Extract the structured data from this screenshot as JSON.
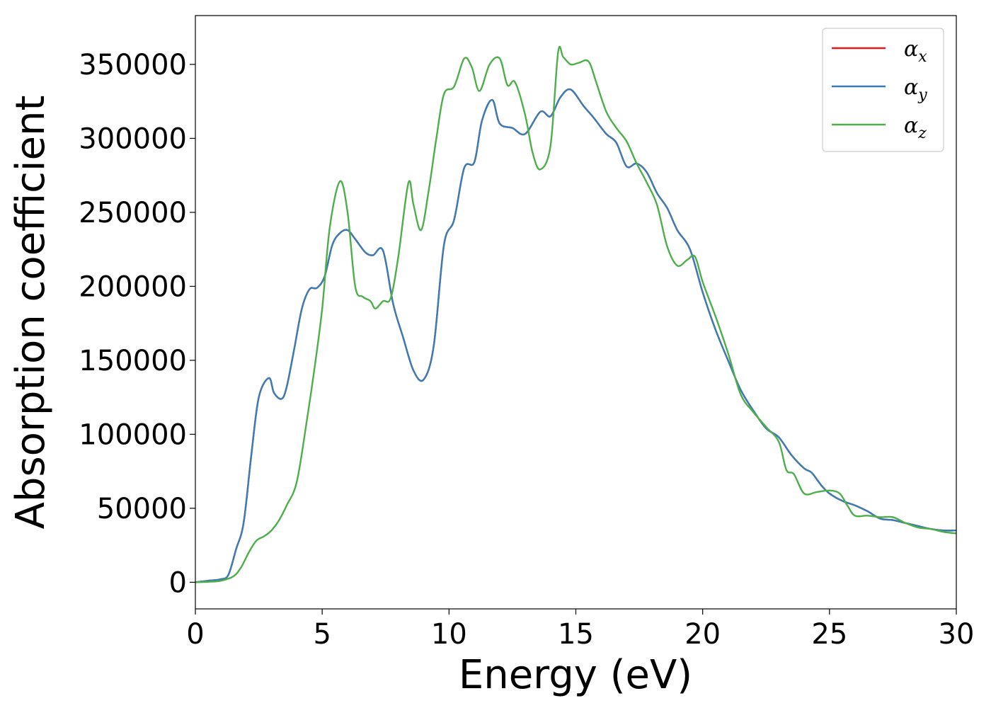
{
  "chart_data": {
    "type": "line",
    "title": "",
    "xlabel": "Energy (eV)",
    "ylabel": "Absorption coefficient",
    "xlim": [
      0,
      30
    ],
    "ylim": [
      -18000,
      383000
    ],
    "xticks": [
      "0",
      "5",
      "10",
      "15",
      "20",
      "25",
      "30"
    ],
    "yticks": [
      "0",
      "50000",
      "100000",
      "150000",
      "200000",
      "250000",
      "300000",
      "350000"
    ],
    "grid": false,
    "legend_position": "top-right",
    "series": [
      {
        "name": "α_x",
        "legend_base": "α",
        "legend_sub": "x",
        "color": "#e41a1c",
        "x": [
          0,
          0.5,
          1.0,
          1.3,
          1.6,
          1.9,
          2.2,
          2.5,
          2.9,
          3.1,
          3.4,
          3.6,
          3.9,
          4.2,
          4.5,
          4.8,
          5.1,
          5.4,
          5.7,
          6.0,
          6.3,
          6.7,
          7.0,
          7.4,
          7.8,
          8.2,
          8.6,
          9.0,
          9.4,
          9.8,
          10.2,
          10.6,
          11.0,
          11.3,
          11.7,
          12.0,
          12.5,
          13.0,
          13.6,
          14.0,
          14.4,
          14.8,
          15.3,
          15.7,
          16.2,
          16.6,
          17.0,
          17.4,
          17.8,
          18.2,
          18.6,
          19.0,
          19.5,
          20.0,
          20.5,
          21.0,
          21.5,
          22.0,
          22.5,
          23.0,
          23.5,
          24.0,
          24.3,
          24.7,
          25.0,
          25.5,
          26.0,
          26.5,
          27.0,
          27.5,
          28.0,
          28.5,
          29.0,
          29.5,
          30.0
        ],
        "y": [
          0,
          1000,
          2000,
          5000,
          22000,
          40000,
          85000,
          125000,
          138000,
          128000,
          124000,
          132000,
          158000,
          185000,
          198000,
          199000,
          207000,
          228000,
          236000,
          238000,
          232000,
          223000,
          221000,
          224000,
          188000,
          165000,
          143000,
          137000,
          160000,
          228000,
          245000,
          280000,
          284000,
          312000,
          326000,
          310000,
          307000,
          303000,
          318000,
          315000,
          328000,
          333000,
          322000,
          314000,
          303000,
          297000,
          281000,
          283000,
          277000,
          263000,
          253000,
          238000,
          225000,
          196000,
          171000,
          150000,
          130000,
          116000,
          104000,
          98000,
          86000,
          77000,
          74000,
          65000,
          60000,
          55000,
          52000,
          48000,
          43000,
          42000,
          40000,
          38000,
          36000,
          35000,
          35000
        ]
      },
      {
        "name": "α_y",
        "legend_base": "α",
        "legend_sub": "y",
        "color": "#377eb8",
        "x": [
          0,
          0.5,
          1.0,
          1.3,
          1.6,
          1.9,
          2.2,
          2.5,
          2.9,
          3.1,
          3.4,
          3.6,
          3.9,
          4.2,
          4.5,
          4.8,
          5.1,
          5.4,
          5.7,
          6.0,
          6.3,
          6.7,
          7.0,
          7.4,
          7.8,
          8.2,
          8.6,
          9.0,
          9.4,
          9.8,
          10.2,
          10.6,
          11.0,
          11.3,
          11.7,
          12.0,
          12.5,
          13.0,
          13.6,
          14.0,
          14.4,
          14.8,
          15.3,
          15.7,
          16.2,
          16.6,
          17.0,
          17.4,
          17.8,
          18.2,
          18.6,
          19.0,
          19.5,
          20.0,
          20.5,
          21.0,
          21.5,
          22.0,
          22.5,
          23.0,
          23.5,
          24.0,
          24.3,
          24.7,
          25.0,
          25.5,
          26.0,
          26.5,
          27.0,
          27.5,
          28.0,
          28.5,
          29.0,
          29.5,
          30.0
        ],
        "y": [
          0,
          1000,
          2000,
          5000,
          22000,
          40000,
          85000,
          125000,
          138000,
          128000,
          124000,
          132000,
          158000,
          185000,
          198000,
          199000,
          207000,
          228000,
          236000,
          238000,
          232000,
          223000,
          221000,
          224000,
          188000,
          165000,
          143000,
          137000,
          160000,
          228000,
          245000,
          280000,
          284000,
          312000,
          326000,
          310000,
          307000,
          303000,
          318000,
          315000,
          328000,
          333000,
          322000,
          314000,
          303000,
          297000,
          281000,
          283000,
          277000,
          263000,
          253000,
          238000,
          225000,
          196000,
          171000,
          150000,
          130000,
          116000,
          104000,
          98000,
          86000,
          77000,
          74000,
          65000,
          60000,
          55000,
          52000,
          48000,
          43000,
          42000,
          40000,
          38000,
          36000,
          35000,
          35000
        ]
      },
      {
        "name": "α_z",
        "legend_base": "α",
        "legend_sub": "z",
        "color": "#4daf4a",
        "x": [
          0,
          0.5,
          1.0,
          1.5,
          1.8,
          2.1,
          2.4,
          2.7,
          3.0,
          3.3,
          3.6,
          4.0,
          4.4,
          4.7,
          5.0,
          5.3,
          5.7,
          6.0,
          6.3,
          6.6,
          6.9,
          7.1,
          7.4,
          7.7,
          8.0,
          8.4,
          8.6,
          8.9,
          9.2,
          9.5,
          9.8,
          10.2,
          10.6,
          10.9,
          11.2,
          11.6,
          12.0,
          12.3,
          12.6,
          13.0,
          13.3,
          13.6,
          14.0,
          14.3,
          14.5,
          14.8,
          15.1,
          15.5,
          15.8,
          16.2,
          16.6,
          17.0,
          17.4,
          17.8,
          18.2,
          18.6,
          19.0,
          19.4,
          19.7,
          20.0,
          20.5,
          21.0,
          21.5,
          22.0,
          22.5,
          23.0,
          23.3,
          23.6,
          24.0,
          24.5,
          25.0,
          25.4,
          25.7,
          26.0,
          26.5,
          27.0,
          27.5,
          28.0,
          28.5,
          29.0,
          29.5,
          30.0
        ],
        "y": [
          0,
          300,
          1000,
          4000,
          10000,
          20000,
          28000,
          31000,
          35000,
          42000,
          52000,
          68000,
          110000,
          145000,
          185000,
          240000,
          271000,
          250000,
          200000,
          193000,
          190000,
          185000,
          190000,
          192000,
          220000,
          270000,
          255000,
          238000,
          265000,
          300000,
          330000,
          335000,
          354000,
          348000,
          332000,
          350000,
          354000,
          336000,
          338000,
          316000,
          290000,
          279000,
          295000,
          358000,
          355000,
          350000,
          351000,
          352000,
          338000,
          318000,
          307000,
          298000,
          283000,
          270000,
          255000,
          227000,
          214000,
          218000,
          220000,
          203000,
          180000,
          155000,
          127000,
          115000,
          105000,
          95000,
          76000,
          73000,
          60000,
          61000,
          62000,
          60000,
          52000,
          45000,
          45000,
          44000,
          44000,
          40000,
          37000,
          36000,
          34000,
          33000
        ]
      }
    ]
  }
}
